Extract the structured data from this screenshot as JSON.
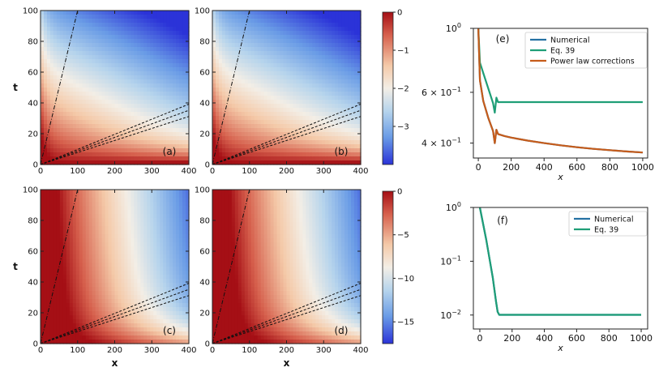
{
  "chart_data": [
    {
      "id": "a",
      "type": "heatmap",
      "panel_label": "(a)",
      "xlabel": "",
      "ylabel": "t",
      "xlim": [
        0,
        400
      ],
      "ylim": [
        0,
        100
      ],
      "xticks": [
        "0",
        "100",
        "200",
        "300",
        "400"
      ],
      "yticks": [
        "0",
        "20",
        "40",
        "60",
        "80",
        "100"
      ],
      "colorscale": {
        "min": -4,
        "max": 0,
        "label_group": "top"
      },
      "dashdot_slope": 1.0,
      "dashed_slopes": [
        0.078,
        0.088,
        0.098
      ]
    },
    {
      "id": "b",
      "type": "heatmap",
      "panel_label": "(b)",
      "xlabel": "",
      "ylabel": "",
      "xlim": [
        0,
        400
      ],
      "ylim": [
        0,
        100
      ],
      "xticks": [
        "0",
        "100",
        "200",
        "300",
        "400"
      ],
      "yticks": [
        "0",
        "20",
        "40",
        "60",
        "80",
        "100"
      ],
      "colorscale": {
        "min": -4,
        "max": 0,
        "label_group": "top"
      },
      "dashdot_slope": 1.0,
      "dashed_slopes": [
        0.078,
        0.088,
        0.098
      ]
    },
    {
      "id": "c",
      "type": "heatmap",
      "panel_label": "(c)",
      "xlabel": "x",
      "ylabel": "t",
      "xlim": [
        0,
        400
      ],
      "ylim": [
        0,
        100
      ],
      "xticks": [
        "0",
        "100",
        "200",
        "300",
        "400"
      ],
      "yticks": [
        "0",
        "20",
        "40",
        "60",
        "80",
        "100"
      ],
      "colorscale": {
        "min": -17.5,
        "max": 0,
        "label_group": "bottom"
      },
      "dashdot_slope": 1.0,
      "dashed_slopes": [
        0.078,
        0.088,
        0.098
      ]
    },
    {
      "id": "d",
      "type": "heatmap",
      "panel_label": "(d)",
      "xlabel": "x",
      "ylabel": "",
      "xlim": [
        0,
        400
      ],
      "ylim": [
        0,
        100
      ],
      "xticks": [
        "0",
        "100",
        "200",
        "300",
        "400"
      ],
      "yticks": [
        "0",
        "20",
        "40",
        "60",
        "80",
        "100"
      ],
      "colorscale": {
        "min": -17.5,
        "max": 0,
        "label_group": "bottom"
      },
      "dashdot_slope": 1.0,
      "dashed_slopes": [
        0.078,
        0.088,
        0.098
      ]
    },
    {
      "id": "e",
      "type": "line",
      "panel_label": "(e)",
      "xlabel": "x",
      "ylabel": "",
      "yscale": "log",
      "xlim": [
        -30,
        1030
      ],
      "ylim": [
        0.355,
        1.0
      ],
      "xticks": [
        0,
        200,
        400,
        600,
        800,
        1000
      ],
      "ytick_values": [
        1.0,
        0.6,
        0.4
      ],
      "ytick_labels": [
        {
          "base": "10",
          "exp": "0"
        },
        {
          "base": "6 × 10",
          "exp": "−1"
        },
        {
          "base": "4 × 10",
          "exp": "−1"
        }
      ],
      "legend_position": "top-right",
      "series": [
        {
          "name": "Numerical",
          "color": "#2471a3",
          "x": [
            0,
            10,
            30,
            60,
            90,
            100,
            110,
            120,
            160,
            200,
            300,
            400,
            500,
            600,
            700,
            800,
            900,
            1000
          ],
          "y": [
            1.0,
            0.66,
            0.56,
            0.49,
            0.44,
            0.4,
            0.445,
            0.43,
            0.423,
            0.418,
            0.408,
            0.4,
            0.393,
            0.387,
            0.382,
            0.378,
            0.374,
            0.371
          ]
        },
        {
          "name": "Eq. 39",
          "color": "#1f9e77",
          "x": [
            0,
            10,
            30,
            60,
            90,
            100,
            110,
            120,
            160,
            200,
            400,
            600,
            800,
            1000
          ],
          "y": [
            1.0,
            0.76,
            0.7,
            0.62,
            0.55,
            0.51,
            0.575,
            0.555,
            0.555,
            0.555,
            0.555,
            0.555,
            0.555,
            0.555
          ]
        },
        {
          "name": "Power law corrections",
          "color": "#c65c1b",
          "x": [
            0,
            10,
            30,
            60,
            90,
            100,
            110,
            120,
            160,
            200,
            300,
            400,
            500,
            600,
            700,
            800,
            900,
            1000
          ],
          "y": [
            1.0,
            0.66,
            0.56,
            0.49,
            0.44,
            0.4,
            0.445,
            0.43,
            0.423,
            0.418,
            0.408,
            0.4,
            0.393,
            0.387,
            0.382,
            0.378,
            0.374,
            0.371
          ]
        }
      ]
    },
    {
      "id": "f",
      "type": "line",
      "panel_label": "(f)",
      "xlabel": "x",
      "ylabel": "",
      "yscale": "log",
      "xlim": [
        -40,
        1040
      ],
      "ylim": [
        0.0055,
        1.0
      ],
      "xticks": [
        0,
        200,
        400,
        600,
        800,
        1000
      ],
      "ytick_values": [
        1.0,
        0.1,
        0.01
      ],
      "ytick_labels": [
        {
          "base": "10",
          "exp": "0"
        },
        {
          "base": "10",
          "exp": "−1"
        },
        {
          "base": "10",
          "exp": "−2"
        }
      ],
      "legend_position": "top-right",
      "series": [
        {
          "name": "Numerical",
          "color": "#2471a3",
          "x": [
            0,
            40,
            80,
            100,
            110,
            120,
            200,
            400,
            600,
            800,
            1000
          ],
          "y": [
            1.0,
            0.25,
            0.05,
            0.018,
            0.0115,
            0.0101,
            0.0101,
            0.0101,
            0.0101,
            0.0101,
            0.0101
          ]
        },
        {
          "name": "Eq. 39",
          "color": "#1f9e77",
          "x": [
            0,
            40,
            80,
            100,
            110,
            120,
            200,
            400,
            600,
            800,
            1000
          ],
          "y": [
            1.0,
            0.25,
            0.05,
            0.018,
            0.0115,
            0.0101,
            0.0101,
            0.0101,
            0.0101,
            0.0101,
            0.0101
          ]
        }
      ]
    }
  ],
  "colorbars": [
    {
      "id": "top",
      "ticks": [
        "0",
        "−1",
        "−2",
        "−3"
      ],
      "tick_values": [
        0,
        -1,
        -2,
        -3
      ],
      "min": -4,
      "max": 0
    },
    {
      "id": "bottom",
      "ticks": [
        "0",
        "−5",
        "−10",
        "−15"
      ],
      "tick_values": [
        0,
        -5,
        -10,
        -15
      ],
      "min": -17.5,
      "max": 0
    }
  ]
}
